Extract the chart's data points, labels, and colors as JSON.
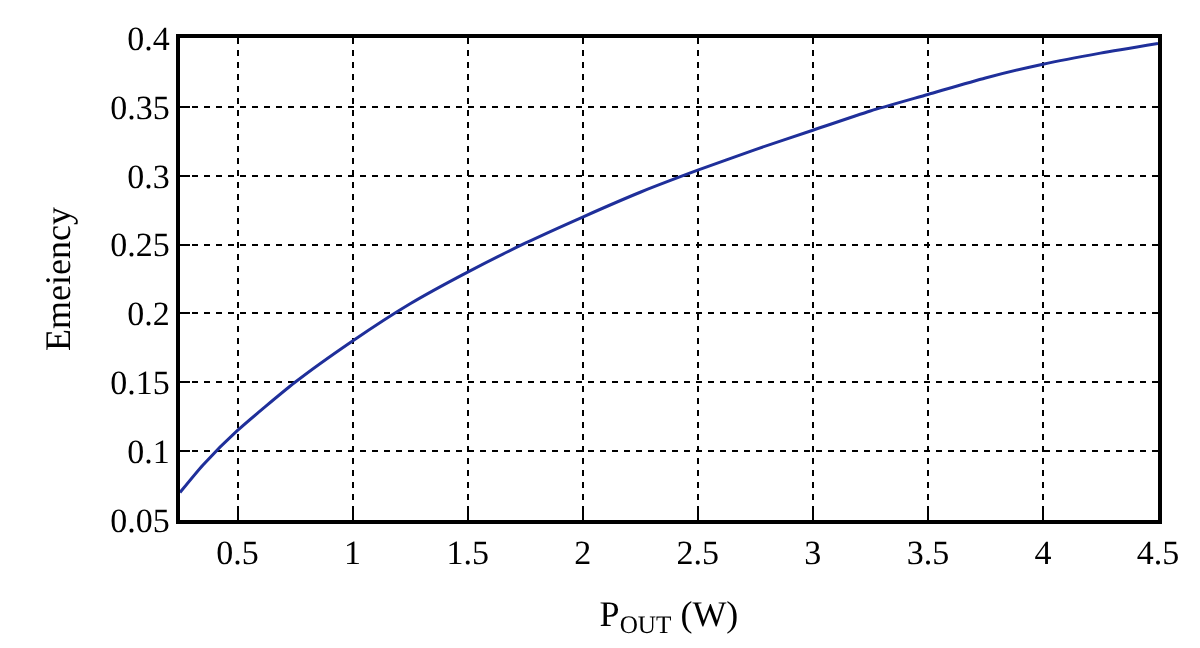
{
  "chart_data": {
    "type": "line",
    "xlabel": "P$_{OUT}$ (W)",
    "ylabel": "Emeiency",
    "x": [
      0.25,
      0.35,
      0.5,
      0.75,
      1,
      1.25,
      1.5,
      1.75,
      2,
      2.25,
      2.5,
      2.75,
      3,
      3.25,
      3.5,
      3.75,
      4,
      4.25,
      4.5
    ],
    "series": [
      {
        "color": "#1f2f9a",
        "values": [
          0.07,
          0.09,
          0.115,
          0.15,
          0.18,
          0.207,
          0.23,
          0.251,
          0.27,
          0.288,
          0.304,
          0.319,
          0.333,
          0.347,
          0.359,
          0.371,
          0.381,
          0.389,
          0.396
        ]
      }
    ],
    "xlim": [
      0.25,
      4.5
    ],
    "xticks": [
      0.5,
      1,
      1.5,
      2,
      2.5,
      3,
      3.5,
      4,
      4.5
    ],
    "ylim": [
      0.05,
      0.4
    ],
    "yticks": [
      0.05,
      0.1,
      0.15,
      0.2,
      0.25,
      0.3,
      0.35,
      0.4
    ],
    "grid": true,
    "marker": "none",
    "line_style": "solid"
  }
}
